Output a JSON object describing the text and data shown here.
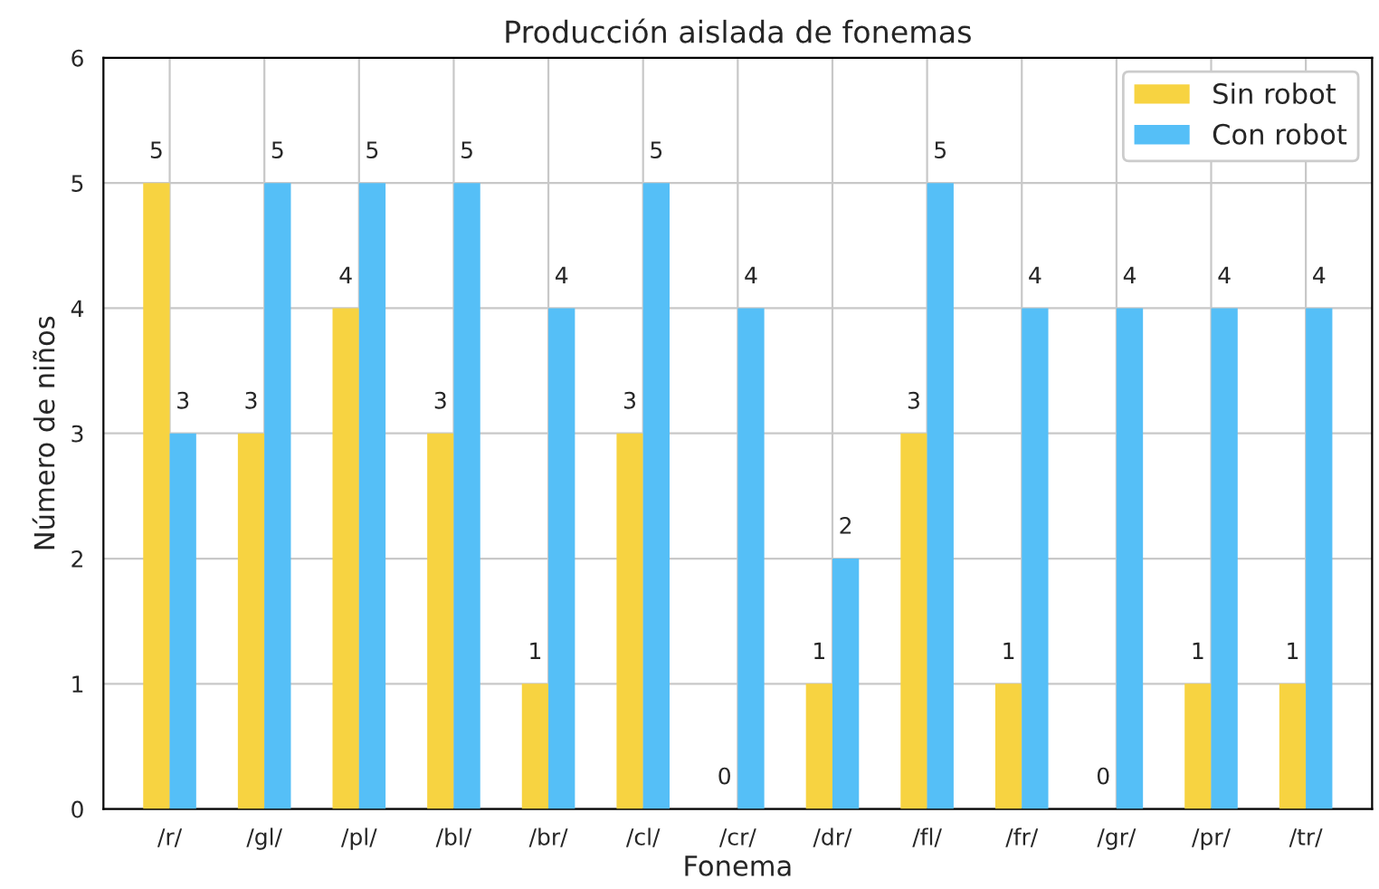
{
  "chart_data": {
    "type": "bar",
    "title": "Producción aislada de fonemas",
    "xlabel": "Fonema",
    "ylabel": "Número de niños",
    "categories": [
      "/r/",
      "/gl/",
      "/pl/",
      "/bl/",
      "/br/",
      "/cl/",
      "/cr/",
      "/dr/",
      "/fl/",
      "/fr/",
      "/gr/",
      "/pr/",
      "/tr/"
    ],
    "series": [
      {
        "name": "Sin robot",
        "color": "#f7d341",
        "values": [
          5,
          3,
          4,
          3,
          1,
          3,
          0,
          1,
          3,
          1,
          0,
          1,
          1
        ]
      },
      {
        "name": "Con robot",
        "color": "#55bff7",
        "values": [
          3,
          5,
          5,
          5,
          4,
          5,
          4,
          2,
          5,
          4,
          4,
          4,
          4
        ]
      }
    ],
    "ylim": [
      0,
      6
    ],
    "yticks": [
      0,
      1,
      2,
      3,
      4,
      5,
      6
    ],
    "grid": true,
    "legend": "top right",
    "data_labels": true
  }
}
